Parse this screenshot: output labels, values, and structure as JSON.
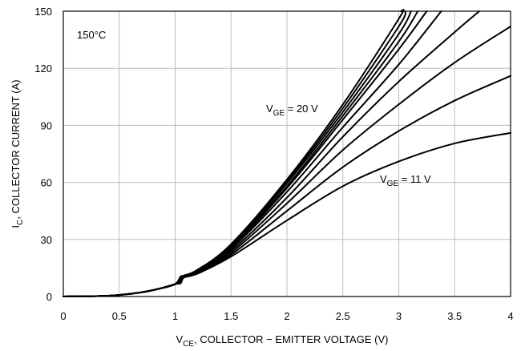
{
  "chart_data": {
    "type": "line",
    "title": "",
    "xlabel_main": "V",
    "xlabel_sub": "CE",
    "xlabel_rest": ", COLLECTOR − EMITTER VOLTAGE (V)",
    "ylabel_main": "I",
    "ylabel_sub": "C",
    "ylabel_rest": ", COLLECTOR CURRENT (A)",
    "xlim": [
      0,
      4
    ],
    "ylim": [
      0,
      150
    ],
    "x_ticks": [
      0,
      0.5,
      1,
      1.5,
      2,
      2.5,
      3,
      3.5,
      4
    ],
    "x_tick_labels": [
      "0",
      "0.5",
      "1",
      "1.5",
      "2",
      "2.5",
      "3",
      "3.5",
      "4"
    ],
    "y_ticks": [
      0,
      30,
      60,
      90,
      120,
      150
    ],
    "y_tick_labels": [
      "0",
      "30",
      "60",
      "90",
      "120",
      "150"
    ],
    "grid": true,
    "annotations": {
      "temperature": "150°C",
      "vge_high_main": "V",
      "vge_high_sub": "GE",
      "vge_high_rest": " = 20 V",
      "vge_low_main": "V",
      "vge_low_sub": "GE",
      "vge_low_rest": " = 11 V"
    },
    "series": [
      {
        "x": [
          0,
          0.3,
          0.5,
          0.7,
          0.85,
          1.0,
          1.05,
          1.08,
          1.2,
          1.5,
          2.0,
          2.5,
          3.0,
          3.5,
          4.0
        ],
        "values": [
          0,
          0.2,
          0.8,
          2.2,
          4,
          6.5,
          7,
          10,
          12,
          21,
          40,
          58,
          71,
          80.5,
          86
        ]
      },
      {
        "x": [
          0,
          0.3,
          0.5,
          0.7,
          0.85,
          1.0,
          1.05,
          1.08,
          1.2,
          1.5,
          2.0,
          2.5,
          3.0,
          3.5,
          4.0
        ],
        "values": [
          0,
          0.2,
          0.8,
          2.2,
          4,
          6.5,
          7.5,
          10.5,
          12.5,
          22,
          45,
          68,
          87,
          103,
          116
        ]
      },
      {
        "x": [
          0,
          0.3,
          0.5,
          0.7,
          0.85,
          1.0,
          1.05,
          1.08,
          1.2,
          1.5,
          2.0,
          2.5,
          3.0,
          3.5,
          4.0
        ],
        "values": [
          0,
          0.2,
          0.8,
          2.2,
          4,
          6.5,
          8,
          11,
          13,
          23,
          49,
          77,
          101,
          123,
          142
        ]
      },
      {
        "x": [
          0,
          0.3,
          0.5,
          0.7,
          0.85,
          1.0,
          1.05,
          1.08,
          1.2,
          1.5,
          2.0,
          2.5,
          3.0,
          3.5,
          3.72
        ],
        "values": [
          0,
          0.2,
          0.8,
          2.2,
          4,
          6.5,
          8.5,
          11,
          13,
          24,
          52,
          84,
          113,
          139,
          150
        ]
      },
      {
        "x": [
          0,
          0.3,
          0.5,
          0.7,
          0.85,
          1.0,
          1.05,
          1.08,
          1.2,
          1.5,
          2.0,
          2.5,
          3.0,
          3.38
        ],
        "values": [
          0,
          0.2,
          0.8,
          2.2,
          4,
          6.5,
          9,
          11,
          13,
          25,
          55,
          89,
          122,
          150
        ]
      },
      {
        "x": [
          0,
          0.3,
          0.5,
          0.7,
          0.85,
          1.0,
          1.05,
          1.08,
          1.2,
          1.5,
          2.0,
          2.5,
          3.0,
          3.25
        ],
        "values": [
          0,
          0.2,
          0.8,
          2.2,
          4,
          6.5,
          9.5,
          11,
          13.5,
          25.5,
          57,
          93,
          130,
          150
        ]
      },
      {
        "x": [
          0,
          0.3,
          0.5,
          0.7,
          0.85,
          1.0,
          1.05,
          1.08,
          1.2,
          1.5,
          2.0,
          2.5,
          3.0,
          3.17
        ],
        "values": [
          0,
          0.2,
          0.8,
          2.2,
          4,
          6.5,
          10,
          11,
          13.5,
          26,
          58,
          95,
          134,
          150
        ]
      },
      {
        "x": [
          0,
          0.3,
          0.5,
          0.7,
          0.85,
          1.0,
          1.05,
          1.08,
          1.2,
          1.5,
          2.0,
          2.5,
          3.0,
          3.11
        ],
        "values": [
          0,
          0.2,
          0.8,
          2.2,
          4,
          6.5,
          10,
          11,
          14,
          26.5,
          59.5,
          97,
          138,
          150
        ]
      },
      {
        "x": [
          0,
          0.3,
          0.5,
          0.7,
          0.85,
          1.0,
          1.05,
          1.08,
          1.2,
          1.5,
          2.0,
          2.5,
          3.0,
          3.06
        ],
        "values": [
          0,
          0.2,
          0.8,
          2.2,
          4,
          6.5,
          10.5,
          11,
          14,
          27,
          60.5,
          99,
          142,
          150
        ]
      },
      {
        "x": [
          0,
          0.3,
          0.5,
          0.7,
          0.85,
          1.0,
          1.05,
          1.08,
          1.2,
          1.5,
          2.0,
          2.5,
          3.0,
          3.02
        ],
        "values": [
          0,
          0.2,
          0.8,
          2.2,
          4,
          6.5,
          10.5,
          11,
          14,
          27.5,
          61.5,
          101,
          146,
          150
        ]
      }
    ]
  }
}
